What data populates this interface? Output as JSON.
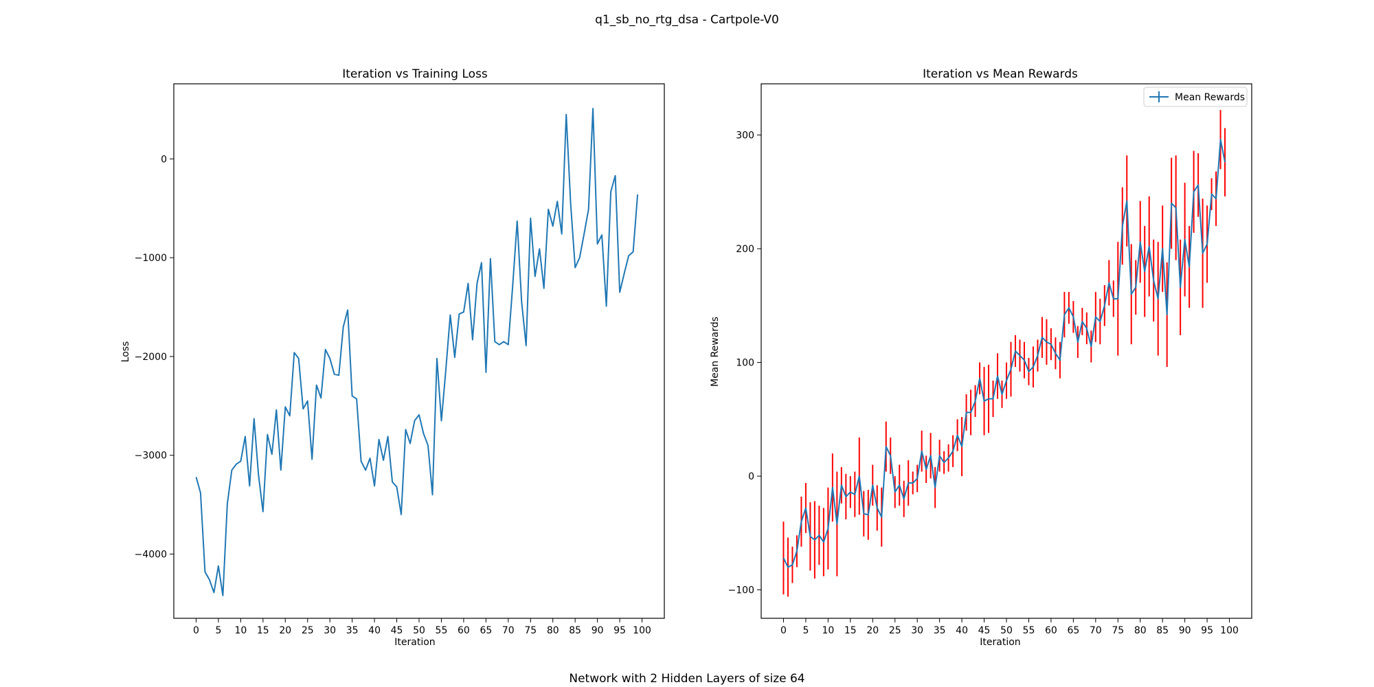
{
  "figure": {
    "suptitle": "q1_sb_no_rtg_dsa - Cartpole-V0",
    "footer": "Network with 2 Hidden Layers of size 64",
    "line_color": "#1f77b4",
    "errorbar_color": "#ff0000"
  },
  "chart_data": [
    {
      "type": "line",
      "title": "Iteration vs Training Loss",
      "xlabel": "Iteration",
      "ylabel": "Loss",
      "xlim": [
        -5,
        105
      ],
      "ylim": [
        -4650,
        760
      ],
      "xticks": [
        0,
        5,
        10,
        15,
        20,
        25,
        30,
        35,
        40,
        45,
        50,
        55,
        60,
        65,
        70,
        75,
        80,
        85,
        90,
        95,
        100
      ],
      "yticks": [
        -4000,
        -3000,
        -2000,
        -1000,
        0
      ],
      "grid": false,
      "series": [
        {
          "x": [
            0,
            1,
            2,
            3,
            4,
            5,
            6,
            7,
            8,
            9,
            10,
            11,
            12,
            13,
            14,
            15,
            16,
            17,
            18,
            19,
            20,
            21,
            22,
            23,
            24,
            25,
            26,
            27,
            28,
            29,
            30,
            31,
            32,
            33,
            34,
            35,
            36,
            37,
            38,
            39,
            40,
            41,
            42,
            43,
            44,
            45,
            46,
            47,
            48,
            49,
            50,
            51,
            52,
            53,
            54,
            55,
            56,
            57,
            58,
            59,
            60,
            61,
            62,
            63,
            64,
            65,
            66,
            67,
            68,
            69,
            70,
            71,
            72,
            73,
            74,
            75,
            76,
            77,
            78,
            79,
            80,
            81,
            82,
            83,
            84,
            85,
            86,
            87,
            88,
            89,
            90,
            91,
            92,
            93,
            94,
            95,
            96,
            97,
            98,
            99
          ],
          "values": [
            -3220,
            -3380,
            -4180,
            -4260,
            -4390,
            -4120,
            -4420,
            -3490,
            -3150,
            -3090,
            -3060,
            -2810,
            -3310,
            -2630,
            -3200,
            -3570,
            -2790,
            -2990,
            -2540,
            -3150,
            -2510,
            -2600,
            -1960,
            -2020,
            -2530,
            -2450,
            -3040,
            -2290,
            -2420,
            -1930,
            -2020,
            -2180,
            -2190,
            -1700,
            -1530,
            -2400,
            -2430,
            -3060,
            -3150,
            -3030,
            -3310,
            -2840,
            -3050,
            -2810,
            -3270,
            -3320,
            -3600,
            -2740,
            -2880,
            -2650,
            -2590,
            -2780,
            -2900,
            -3400,
            -2020,
            -2650,
            -2140,
            -1580,
            -2010,
            -1570,
            -1550,
            -1260,
            -1830,
            -1260,
            -1050,
            -2160,
            -1010,
            -1850,
            -1880,
            -1850,
            -1880,
            -1280,
            -630,
            -1450,
            -1890,
            -600,
            -1190,
            -910,
            -1310,
            -510,
            -680,
            -430,
            -760,
            450,
            -460,
            -1100,
            -1000,
            -760,
            -510,
            510,
            -860,
            -770,
            -1490,
            -330,
            -170,
            -1350,
            -1160,
            -980,
            -940,
            -360
          ]
        }
      ]
    },
    {
      "type": "line",
      "title": "Iteration vs Mean Rewards",
      "xlabel": "Iteration",
      "ylabel": "Mean Rewards",
      "xlim": [
        -5,
        105
      ],
      "ylim": [
        -125,
        345
      ],
      "xticks": [
        0,
        5,
        10,
        15,
        20,
        25,
        30,
        35,
        40,
        45,
        50,
        55,
        60,
        65,
        70,
        75,
        80,
        85,
        90,
        95,
        100
      ],
      "yticks": [
        -100,
        0,
        100,
        200,
        300
      ],
      "grid": false,
      "legend": "top-right",
      "series": [
        {
          "name": "Mean Rewards",
          "x": [
            0,
            1,
            2,
            3,
            4,
            5,
            6,
            7,
            8,
            9,
            10,
            11,
            12,
            13,
            14,
            15,
            16,
            17,
            18,
            19,
            20,
            21,
            22,
            23,
            24,
            25,
            26,
            27,
            28,
            29,
            30,
            31,
            32,
            33,
            34,
            35,
            36,
            37,
            38,
            39,
            40,
            41,
            42,
            43,
            44,
            45,
            46,
            47,
            48,
            49,
            50,
            51,
            52,
            53,
            54,
            55,
            56,
            57,
            58,
            59,
            60,
            61,
            62,
            63,
            64,
            65,
            66,
            67,
            68,
            69,
            70,
            71,
            72,
            73,
            74,
            75,
            76,
            77,
            78,
            79,
            80,
            81,
            82,
            83,
            84,
            85,
            86,
            87,
            88,
            89,
            90,
            91,
            92,
            93,
            94,
            95,
            96,
            97,
            98,
            99
          ],
          "values": [
            -72,
            -80,
            -78,
            -66,
            -40,
            -28,
            -53,
            -56,
            -52,
            -58,
            -46,
            -10,
            -42,
            -8,
            -18,
            -14,
            -16,
            0,
            -33,
            -34,
            -8,
            -28,
            -36,
            26,
            18,
            -14,
            -8,
            -20,
            -6,
            -6,
            -2,
            22,
            6,
            18,
            -10,
            18,
            12,
            16,
            22,
            36,
            26,
            56,
            56,
            66,
            86,
            66,
            68,
            68,
            88,
            72,
            84,
            94,
            110,
            106,
            102,
            92,
            96,
            106,
            122,
            118,
            116,
            108,
            102,
            142,
            148,
            140,
            118,
            136,
            130,
            114,
            140,
            136,
            150,
            170,
            156,
            156,
            220,
            242,
            160,
            166,
            206,
            180,
            202,
            172,
            156,
            200,
            142,
            240,
            236,
            166,
            208,
            184,
            250,
            256,
            196,
            204,
            248,
            244,
            296,
            276
          ],
          "errors": [
            32,
            26,
            16,
            14,
            22,
            22,
            30,
            34,
            26,
            30,
            36,
            30,
            46,
            16,
            20,
            14,
            20,
            34,
            20,
            22,
            18,
            20,
            26,
            22,
            16,
            14,
            18,
            16,
            20,
            10,
            12,
            18,
            12,
            20,
            18,
            14,
            10,
            12,
            14,
            14,
            26,
            16,
            20,
            14,
            14,
            30,
            30,
            16,
            20,
            12,
            16,
            24,
            14,
            14,
            16,
            12,
            18,
            14,
            18,
            20,
            14,
            14,
            16,
            20,
            14,
            14,
            14,
            12,
            14,
            14,
            22,
            20,
            18,
            20,
            16,
            50,
            34,
            40,
            44,
            24,
            36,
            40,
            44,
            36,
            50,
            38,
            46,
            40,
            46,
            42,
            50,
            36,
            36,
            28,
            48,
            34,
            14,
            24,
            26,
            30
          ]
        }
      ]
    }
  ]
}
